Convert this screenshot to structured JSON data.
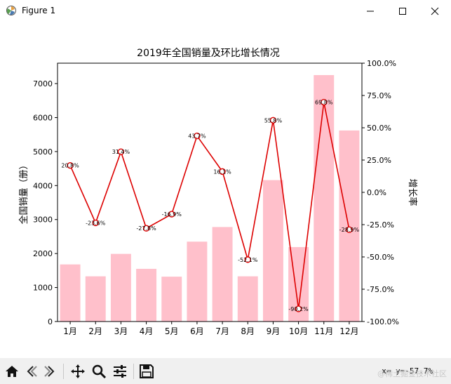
{
  "window": {
    "title": "Figure 1",
    "min_icon": "minimize-icon",
    "max_icon": "maximize-icon",
    "close_icon": "close-icon"
  },
  "toolbar": {
    "buttons": [
      "home-icon",
      "back-icon",
      "forward-icon",
      "pan-icon",
      "zoom-icon",
      "configure-subplots-icon",
      "save-icon"
    ],
    "coord_readout": "x= y=-57.7%",
    "watermark": "@稀土掘金技术社区"
  },
  "chart_data": {
    "type": "bar",
    "title": "2019年全国销量及环比增长情况",
    "xlabel": "",
    "ylabel": "全国销量（册）",
    "y2label": "增长率",
    "categories": [
      "1月",
      "2月",
      "3月",
      "4月",
      "5月",
      "6月",
      "7月",
      "8月",
      "9月",
      "10月",
      "11月",
      "12月"
    ],
    "ylim": [
      0,
      7600
    ],
    "yticks": [
      0,
      1000,
      2000,
      3000,
      4000,
      5000,
      6000,
      7000
    ],
    "y2lim": [
      -100,
      100
    ],
    "y2ticks": [
      -100,
      -75,
      -50,
      -25,
      0,
      25,
      50,
      75,
      100
    ],
    "y2tick_labels": [
      "-100.0%",
      "-75.0%",
      "-50.0%",
      "-25.0%",
      "0.0%",
      "25.0%",
      "50.0%",
      "75.0%",
      "100.0%"
    ],
    "bar_color": "#ffc0cb",
    "line_color": "#dd0000",
    "marker_face": "#ffffff",
    "series": [
      {
        "values": [
          1680,
          1330,
          1990,
          1550,
          1320,
          2350,
          2780,
          1330,
          4160,
          2190,
          7250,
          5620
        ]
      },
      {
        "axis": "right",
        "values": [
          20.8,
          -23.6,
          31.4,
          -27.8,
          -16.9,
          43.7,
          16.1,
          -52.1,
          55.8,
          -90.2,
          69.8,
          -28.9
        ],
        "labels": [
          "20.8%",
          "-23.6%",
          "31.4%",
          "-27.8%",
          "-16.9%",
          "43.7%",
          "16.1%",
          "-52.1%",
          "55.8%",
          "-90.2%",
          "69.8%",
          "-28.9%"
        ]
      }
    ],
    "grid": false,
    "legend": "none"
  }
}
